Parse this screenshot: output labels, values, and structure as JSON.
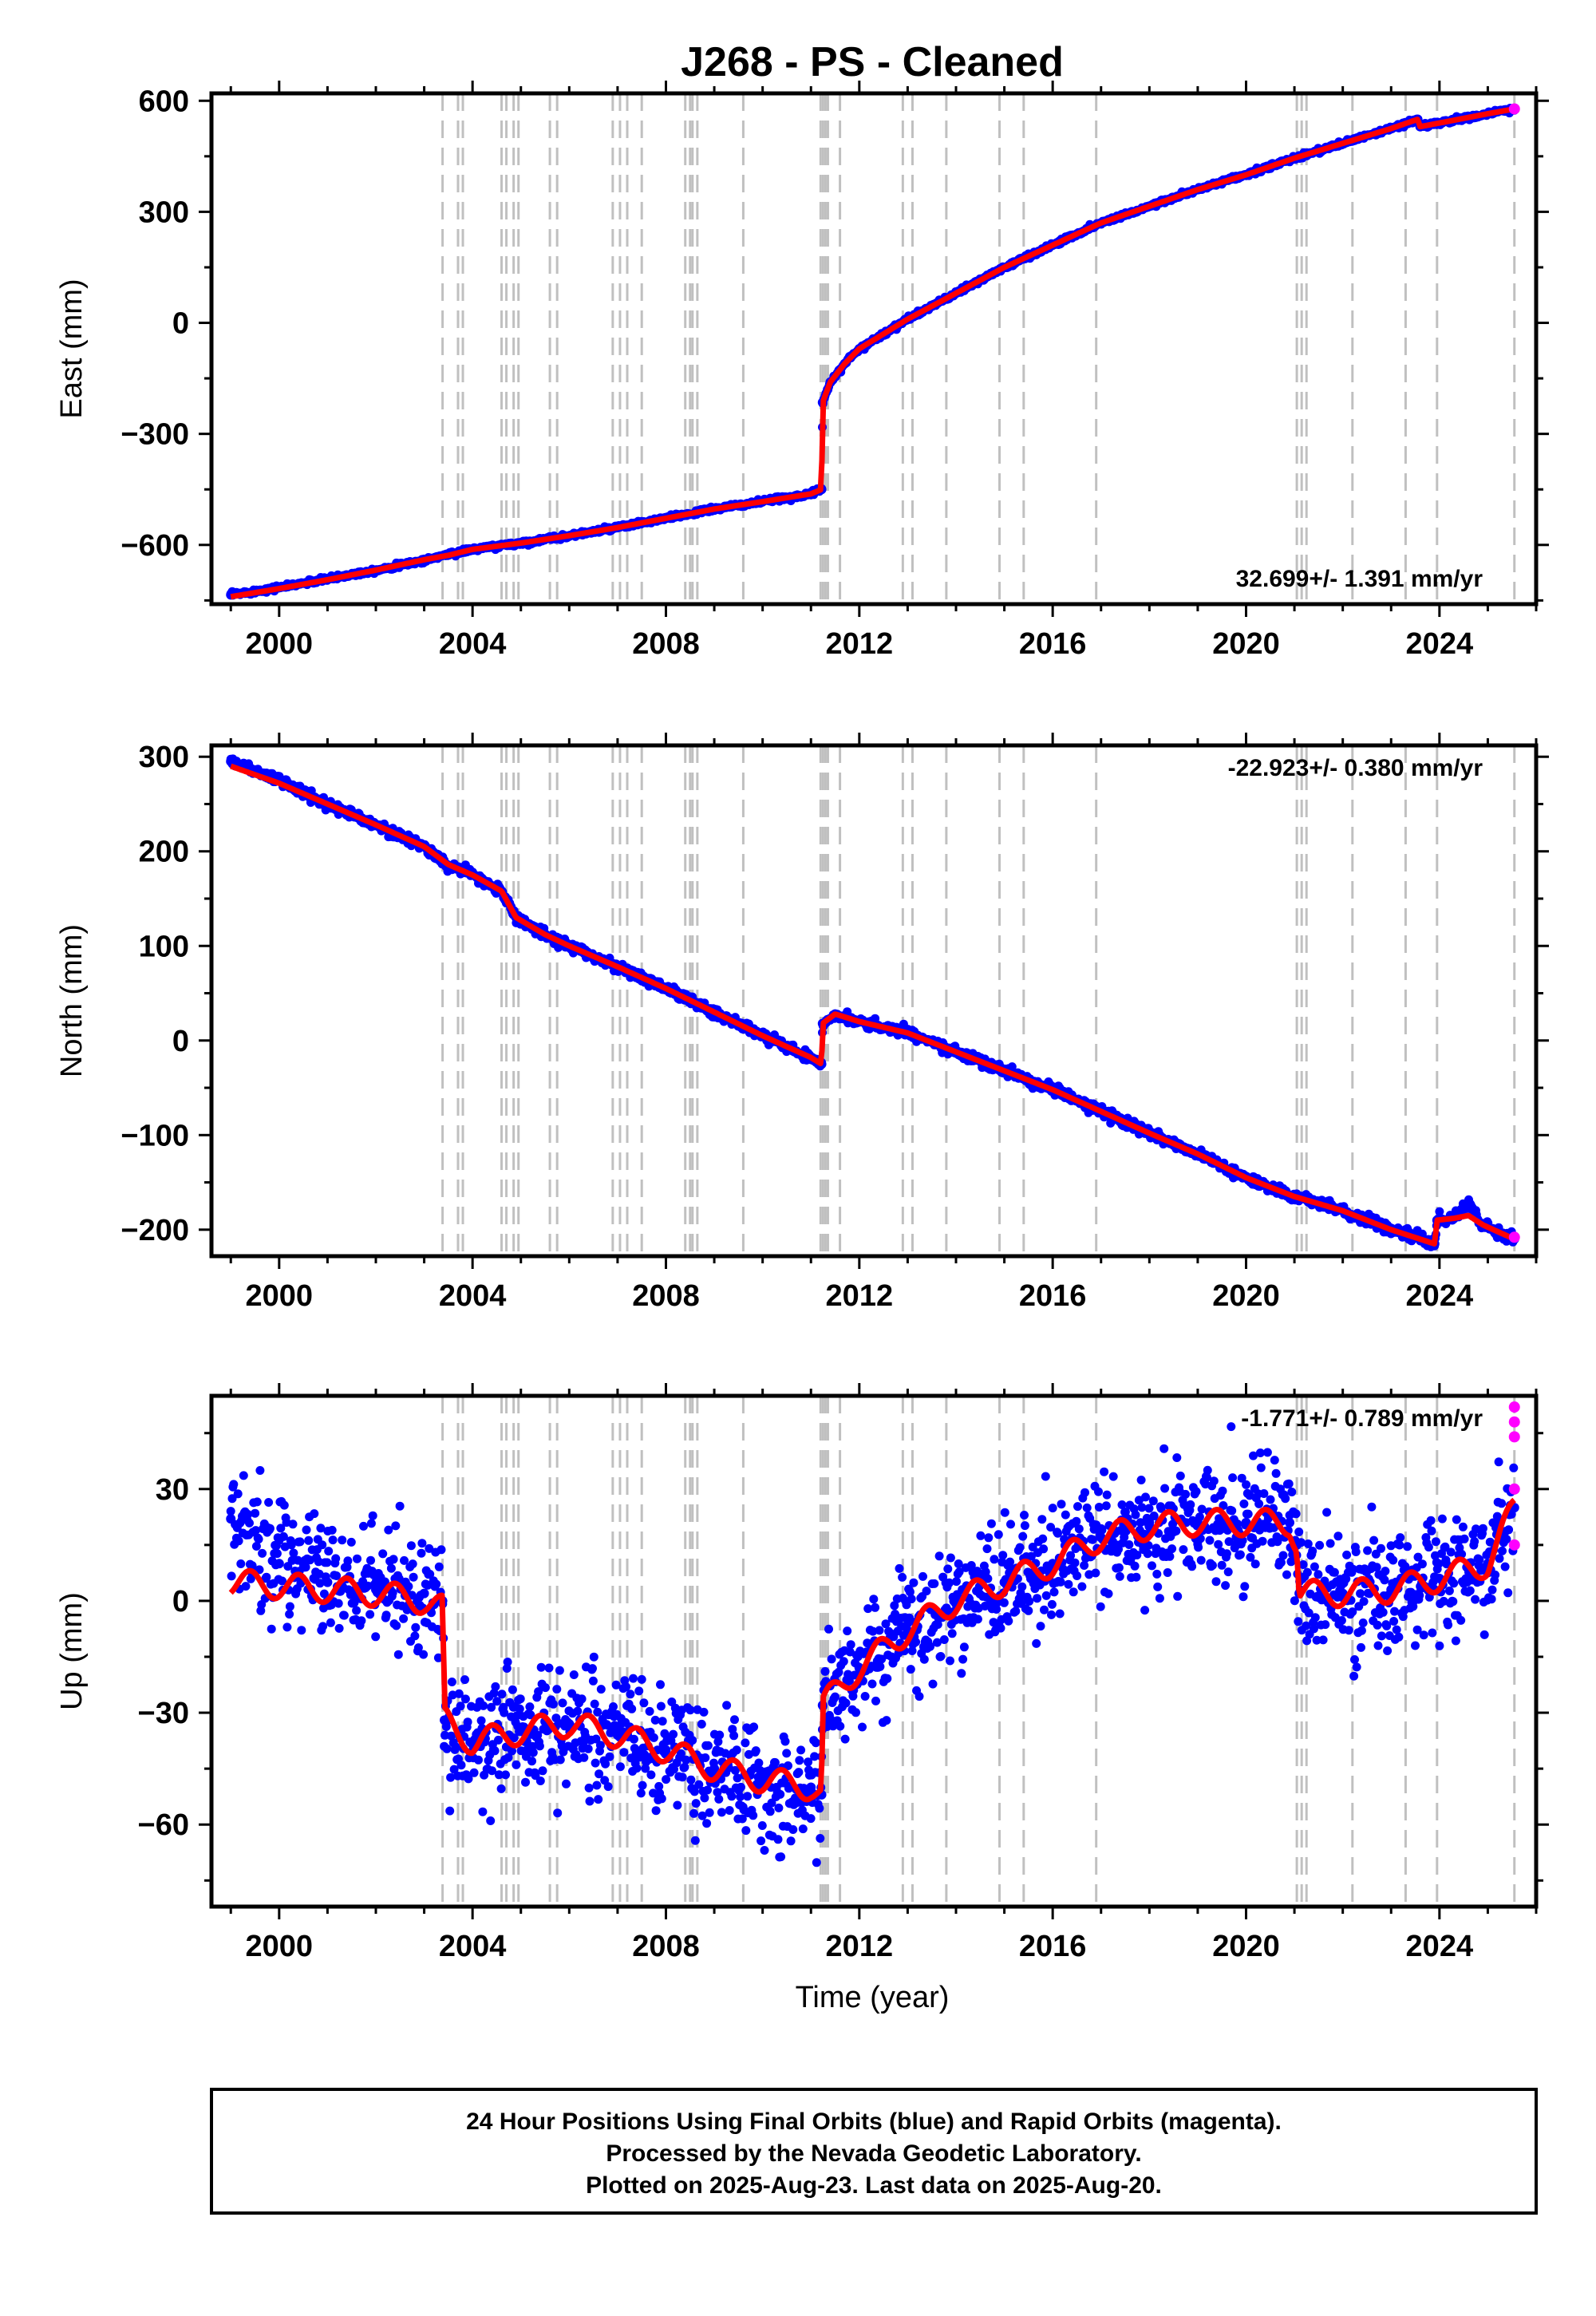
{
  "title": "J268  - PS - Cleaned",
  "colors": {
    "final": "#0000ff",
    "rapid": "#ff00ff",
    "model": "#ff0000",
    "steps": "#c0c0c0"
  },
  "chart_data": [
    {
      "type": "scatter",
      "ylabel": "East (mm)",
      "xlabel": "",
      "xlim": [
        1998.6,
        2026.0
      ],
      "ylim": [
        -760,
        620
      ],
      "xticks": [
        2000,
        2004,
        2008,
        2012,
        2016,
        2020,
        2024
      ],
      "xtick_labels": [
        "2000",
        "2004",
        "2008",
        "2012",
        "2016",
        "2020",
        "2024"
      ],
      "yticks": [
        -600,
        -300,
        0,
        300,
        600
      ],
      "ytick_labels": [
        "−600",
        "−300",
        "0",
        "300",
        "600"
      ],
      "rate_label": "32.699+/- 1.391 mm/yr",
      "rate_position": "bottom-right",
      "noise": 3,
      "series": [
        {
          "role": "final",
          "x": [
            1999.0,
            2000.0,
            2001.0,
            2002.0,
            2003.0,
            2003.5,
            2004.0,
            2005.0,
            2006.0,
            2007.0,
            2008.0,
            2009.0,
            2010.0,
            2011.0,
            2011.22,
            2011.24,
            2011.4,
            2011.7,
            2012.0,
            2012.5,
            2013.0,
            2014.0,
            2015.0,
            2016.0,
            2017.0,
            2018.0,
            2019.0,
            2020.0,
            2021.0,
            2022.0,
            2023.0,
            2023.55,
            2023.6,
            2024.0,
            2025.0,
            2025.55
          ],
          "y": [
            -735,
            -715,
            -692,
            -668,
            -642,
            -625,
            -612,
            -595,
            -575,
            -553,
            -528,
            -503,
            -483,
            -462,
            -450,
            -215,
            -160,
            -110,
            -70,
            -30,
            10,
            80,
            150,
            210,
            270,
            315,
            360,
            400,
            445,
            485,
            525,
            550,
            530,
            540,
            565,
            578
          ]
        },
        {
          "role": "model",
          "x": [
            1999.0,
            2000.0,
            2001.0,
            2002.0,
            2003.0,
            2003.5,
            2004.0,
            2005.0,
            2006.0,
            2007.0,
            2008.0,
            2009.0,
            2010.0,
            2011.0,
            2011.22,
            2011.24,
            2011.4,
            2011.7,
            2012.0,
            2012.5,
            2013.0,
            2014.0,
            2015.0,
            2016.0,
            2017.0,
            2018.0,
            2019.0,
            2020.0,
            2021.0,
            2022.0,
            2023.0,
            2023.55,
            2023.6,
            2024.0,
            2025.0,
            2025.55
          ],
          "y": [
            -740,
            -718,
            -694,
            -668,
            -640,
            -628,
            -612,
            -595,
            -575,
            -553,
            -528,
            -503,
            -483,
            -462,
            -450,
            -215,
            -160,
            -110,
            -70,
            -30,
            10,
            80,
            150,
            210,
            270,
            315,
            360,
            400,
            445,
            485,
            525,
            550,
            530,
            540,
            565,
            578
          ]
        },
        {
          "role": "rapid",
          "x": [
            2025.55
          ],
          "y": [
            578
          ]
        }
      ]
    },
    {
      "type": "scatter",
      "ylabel": "North (mm)",
      "xlabel": "",
      "xlim": [
        1998.6,
        2026.0
      ],
      "ylim": [
        -228,
        312
      ],
      "xticks": [
        2000,
        2004,
        2008,
        2012,
        2016,
        2020,
        2024
      ],
      "xtick_labels": [
        "2000",
        "2004",
        "2008",
        "2012",
        "2016",
        "2020",
        "2024"
      ],
      "yticks": [
        -200,
        -100,
        0,
        100,
        200,
        300
      ],
      "ytick_labels": [
        "−200",
        "−100",
        "0",
        "100",
        "200",
        "300"
      ],
      "rate_label": "-22.923+/- 0.380 mm/yr",
      "rate_position": "top-right",
      "noise": 2.5,
      "series": [
        {
          "role": "final",
          "x": [
            1999.0,
            2000.0,
            2001.0,
            2002.0,
            2003.0,
            2003.5,
            2004.0,
            2004.6,
            2004.9,
            2005.5,
            2006.0,
            2007.0,
            2008.0,
            2009.0,
            2010.0,
            2011.0,
            2011.22,
            2011.24,
            2011.5,
            2012.0,
            2013.0,
            2014.0,
            2015.0,
            2016.0,
            2017.0,
            2018.0,
            2019.0,
            2020.0,
            2021.0,
            2022.0,
            2023.0,
            2023.9,
            2023.95,
            2024.3,
            2024.6,
            2024.9,
            2025.55
          ],
          "y": [
            295,
            275,
            250,
            228,
            205,
            185,
            175,
            158,
            130,
            112,
            100,
            78,
            55,
            30,
            5,
            -18,
            -25,
            18,
            28,
            20,
            8,
            -12,
            -32,
            -52,
            -75,
            -98,
            -120,
            -145,
            -165,
            -180,
            -200,
            -215,
            -190,
            -188,
            -172,
            -195,
            -210
          ]
        },
        {
          "role": "model",
          "x": [
            1999.0,
            2000.0,
            2001.0,
            2002.0,
            2003.0,
            2003.5,
            2004.0,
            2004.6,
            2004.9,
            2005.5,
            2006.0,
            2007.0,
            2008.0,
            2009.0,
            2010.0,
            2011.0,
            2011.22,
            2011.24,
            2011.5,
            2012.0,
            2013.0,
            2014.0,
            2015.0,
            2016.0,
            2017.0,
            2018.0,
            2019.0,
            2020.0,
            2021.0,
            2022.0,
            2023.0,
            2023.9,
            2023.95,
            2024.3,
            2024.6,
            2024.9,
            2025.55
          ],
          "y": [
            290,
            272,
            250,
            228,
            205,
            186,
            175,
            158,
            130,
            112,
            100,
            78,
            55,
            30,
            5,
            -18,
            -25,
            18,
            28,
            20,
            8,
            -12,
            -32,
            -52,
            -75,
            -98,
            -120,
            -145,
            -165,
            -180,
            -200,
            -215,
            -190,
            -188,
            -185,
            -195,
            -210
          ]
        },
        {
          "role": "rapid",
          "x": [
            2025.55
          ],
          "y": [
            -208
          ]
        }
      ]
    },
    {
      "type": "scatter",
      "ylabel": "Up (mm)",
      "xlabel": "Time (year)",
      "xlim": [
        1998.6,
        2026.0
      ],
      "ylim": [
        -82,
        55
      ],
      "xticks": [
        2000,
        2004,
        2008,
        2012,
        2016,
        2020,
        2024
      ],
      "xtick_labels": [
        "2000",
        "2004",
        "2008",
        "2012",
        "2016",
        "2020",
        "2024"
      ],
      "yticks": [
        -60,
        -30,
        0,
        30
      ],
      "ytick_labels": [
        "−60",
        "−30",
        "0",
        "30"
      ],
      "rate_label": "-1.771+/- 0.789 mm/yr",
      "rate_position": "top-right",
      "noise": 8,
      "series": [
        {
          "role": "final",
          "x": [
            1999.0,
            2000.0,
            2001.0,
            2002.0,
            2003.0,
            2003.38,
            2003.42,
            2004.0,
            2005.0,
            2006.0,
            2007.0,
            2008.0,
            2009.0,
            2010.0,
            2011.0,
            2011.22,
            2011.24,
            2012.0,
            2013.0,
            2014.0,
            2015.0,
            2016.0,
            2017.0,
            2018.0,
            2019.0,
            2020.0,
            2020.9,
            2021.05,
            2021.1,
            2022.0,
            2023.0,
            2024.0,
            2025.0,
            2025.55
          ],
          "y": [
            22,
            10,
            5,
            3,
            2,
            0,
            -32,
            -38,
            -35,
            -33,
            -36,
            -40,
            -45,
            -48,
            -50,
            -52,
            -28,
            -18,
            -8,
            0,
            5,
            10,
            17,
            20,
            21,
            21,
            21,
            15,
            2,
            2,
            3,
            6,
            10,
            25
          ]
        },
        {
          "role": "model",
          "x": [
            1999.0,
            2000.0,
            2001.0,
            2002.0,
            2003.0,
            2003.38,
            2003.42,
            2004.0,
            2005.0,
            2006.0,
            2007.0,
            2008.0,
            2009.0,
            2010.0,
            2011.0,
            2011.22,
            2011.24,
            2012.0,
            2013.0,
            2014.0,
            2015.0,
            2016.0,
            2017.0,
            2018.0,
            2019.0,
            2020.0,
            2020.9,
            2021.05,
            2021.1,
            2022.0,
            2023.0,
            2024.0,
            2025.0,
            2025.55
          ],
          "y": [
            5,
            4,
            3,
            2,
            0,
            -2,
            -32,
            -38,
            -35,
            -33,
            -36,
            -40,
            -45,
            -48,
            -50,
            -52,
            -28,
            -18,
            -8,
            0,
            5,
            10,
            17,
            20,
            21,
            21,
            21,
            15,
            2,
            2,
            3,
            6,
            10,
            25
          ]
        },
        {
          "role": "rapid",
          "x": [
            2025.55,
            2025.55,
            2025.55,
            2025.55,
            2025.55
          ],
          "y": [
            52,
            48,
            44,
            30,
            15
          ]
        }
      ]
    }
  ],
  "step_times": [
    2003.38,
    2003.7,
    2003.8,
    2004.6,
    2004.7,
    2004.85,
    2004.95,
    2005.6,
    2005.75,
    2006.9,
    2007.05,
    2007.2,
    2007.5,
    2008.4,
    2008.5,
    2008.55,
    2008.65,
    2009.6,
    2011.2,
    2011.25,
    2011.3,
    2011.35,
    2011.6,
    2012.9,
    2013.1,
    2013.8,
    2014.9,
    2015.4,
    2016.9,
    2021.05,
    2021.15,
    2021.25,
    2022.2,
    2023.3,
    2023.95,
    2025.55
  ],
  "footer": {
    "line1": "24 Hour Positions Using Final Orbits (blue) and Rapid Orbits (magenta).",
    "line2": "Processed by the Nevada Geodetic Laboratory.",
    "line3": "Plotted on 2025-Aug-23. Last data on 2025-Aug-20."
  }
}
